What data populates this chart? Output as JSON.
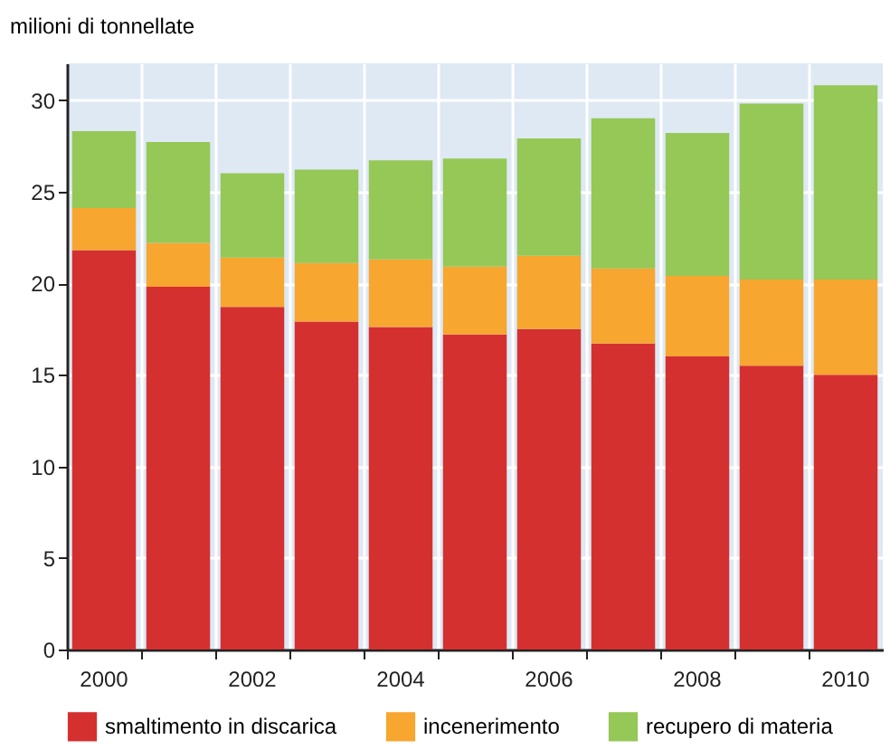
{
  "chart_data": {
    "type": "bar",
    "stacked": true,
    "ylabel": "milioni di tonnellate",
    "categories": [
      "2000",
      null,
      "2002",
      null,
      "2004",
      null,
      "2006",
      null,
      "2008",
      null,
      "2010"
    ],
    "series": [
      {
        "name": "smaltimento in discarica",
        "color": "#d43030",
        "values": [
          21.8,
          19.8,
          18.7,
          17.9,
          17.6,
          17.2,
          17.5,
          16.7,
          16.0,
          15.5,
          15.0
        ]
      },
      {
        "name": "incenerimento",
        "color": "#f7a630",
        "values": [
          2.3,
          2.4,
          2.7,
          3.2,
          3.7,
          3.7,
          4.0,
          4.1,
          4.4,
          4.7,
          5.2
        ]
      },
      {
        "name": "recupero di materia",
        "color": "#95c856",
        "values": [
          4.2,
          5.5,
          4.6,
          5.1,
          5.4,
          5.9,
          6.4,
          8.2,
          7.8,
          9.6,
          10.6
        ]
      }
    ],
    "ylim": [
      0,
      32
    ],
    "yticks": [
      0,
      5,
      10,
      15,
      20,
      25,
      30
    ],
    "grid": true,
    "legend": "bottom"
  }
}
